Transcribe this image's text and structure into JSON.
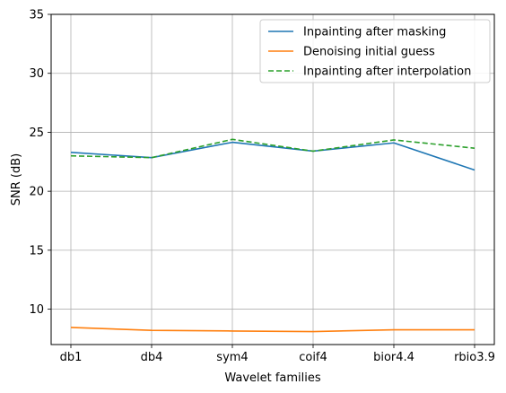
{
  "chart_data": {
    "type": "line",
    "categories": [
      "db1",
      "db4",
      "sym4",
      "coif4",
      "bior4.4",
      "rbio3.9"
    ],
    "xlabel": "Wavelet families",
    "ylabel": "SNR (dB)",
    "ylim": [
      7,
      35
    ],
    "yticks": [
      10,
      15,
      20,
      25,
      30,
      35
    ],
    "grid": true,
    "legend_position": "top-right",
    "series": [
      {
        "name": "Inpainting after masking",
        "color": "#1f77b4",
        "dash": "solid",
        "values": [
          23.3,
          22.85,
          24.15,
          23.4,
          24.1,
          21.8
        ]
      },
      {
        "name": "Denoising initial guess",
        "color": "#ff7f0e",
        "dash": "solid",
        "values": [
          8.45,
          8.2,
          8.15,
          8.1,
          8.25,
          8.25
        ]
      },
      {
        "name": "Inpainting after interpolation",
        "color": "#2ca02c",
        "dash": "dashed",
        "values": [
          23.0,
          22.85,
          24.4,
          23.4,
          24.35,
          23.65
        ]
      }
    ]
  }
}
